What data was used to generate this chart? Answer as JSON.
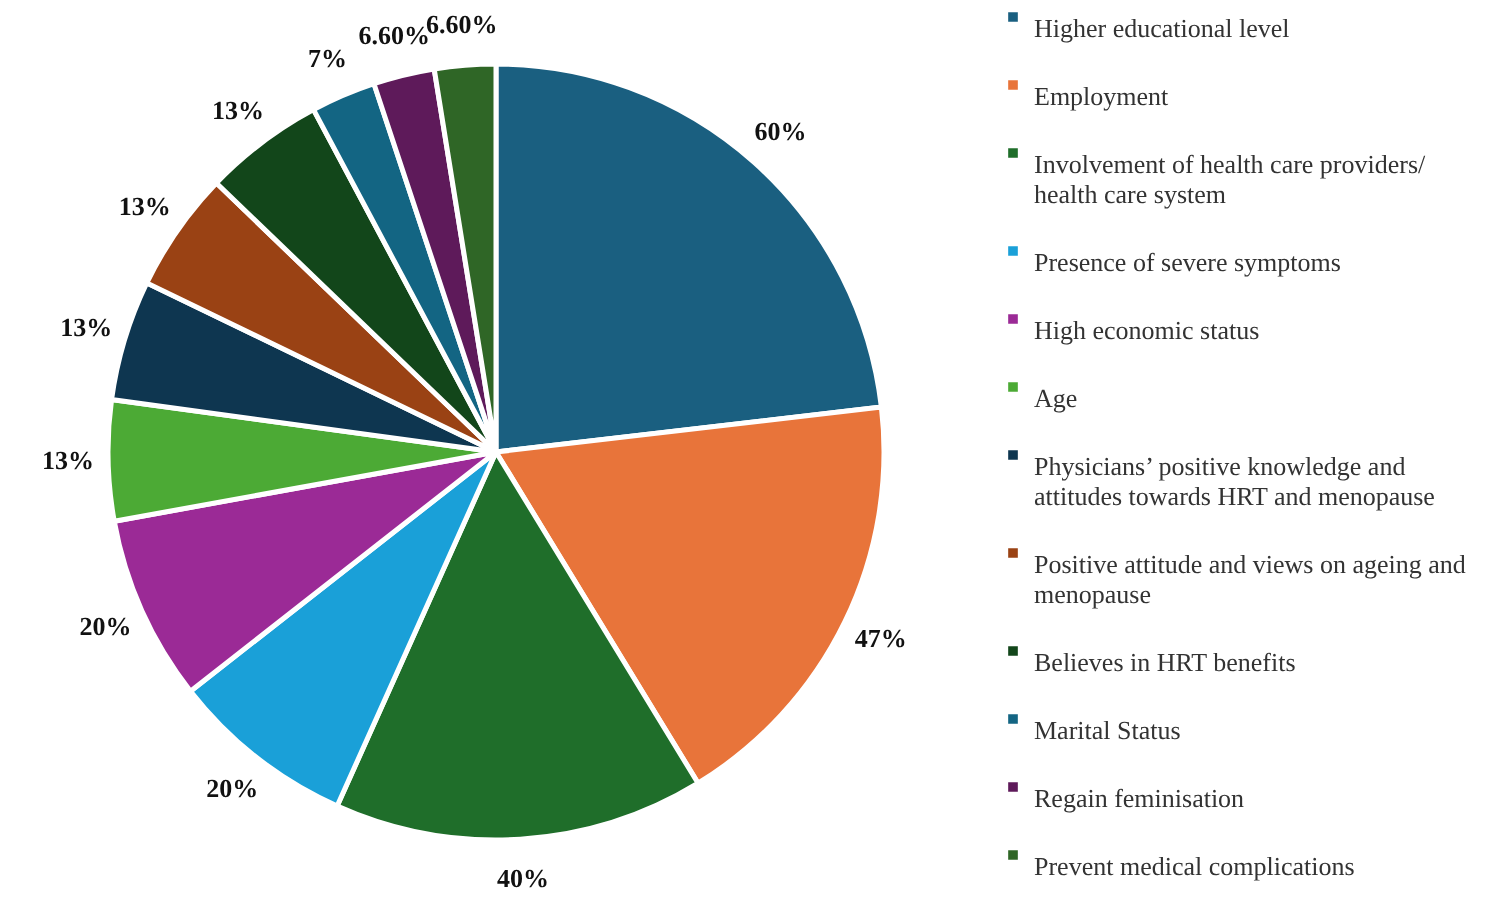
{
  "chart_data": {
    "type": "pie",
    "categories": [
      "Higher educational level",
      "Employment",
      "Involvement of health care providers/ health care system",
      "Presence of severe symptoms",
      "High economic status",
      "Age",
      "Physicians’ positive knowledge and attitudes towards HRT and menopause",
      "Positive attitude and views on ageing and menopause",
      "Believes in HRT benefits",
      "Marital Status",
      "Regain feminisation",
      "Prevent medical complications"
    ],
    "values": [
      60,
      47,
      40,
      20,
      20,
      13,
      13,
      13,
      13,
      7,
      6.6,
      6.6
    ],
    "value_labels": [
      "60%",
      "47%",
      "40%",
      "20%",
      "20%",
      "13%",
      "13%",
      "13%",
      "13%",
      "7%",
      "6.60%",
      "6.60%"
    ],
    "colors": [
      "#1a5f80",
      "#e8743a",
      "#1f6e2a",
      "#1aa0d8",
      "#9b2a96",
      "#4caa35",
      "#0e3650",
      "#9a4214",
      "#12461a",
      "#136583",
      "#5e1a5a",
      "#2f6626"
    ],
    "legend": "right"
  }
}
